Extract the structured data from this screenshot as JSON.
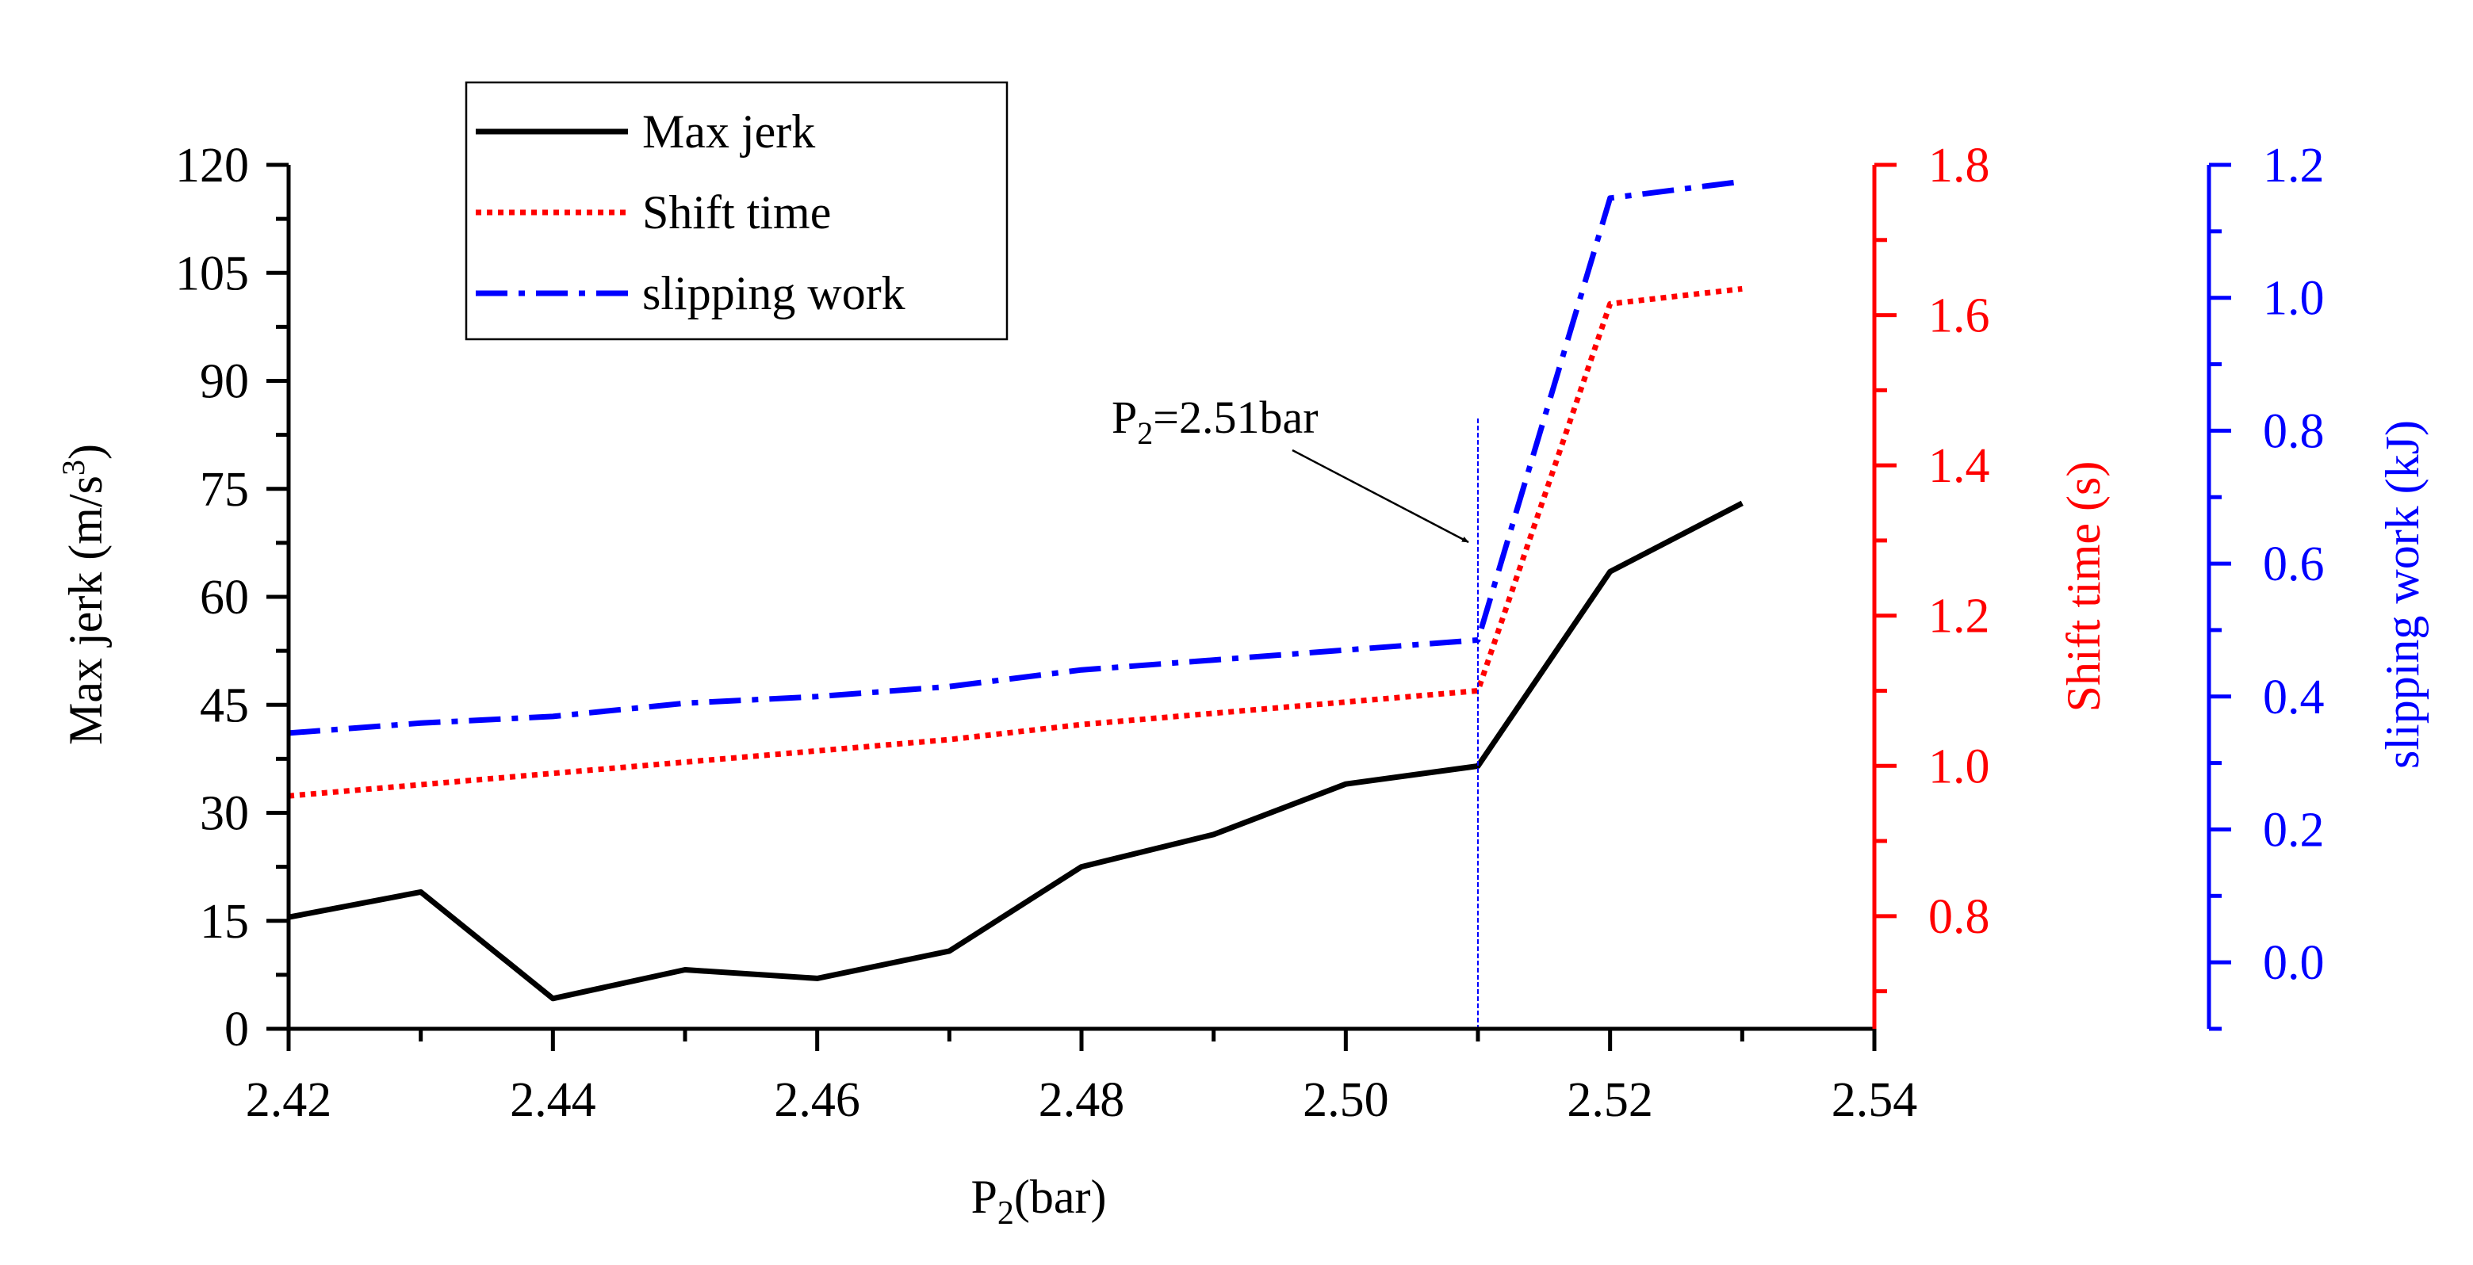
{
  "colors": {
    "jerk": "#000000",
    "shift": "#ff0000",
    "slip": "#0000ff",
    "background": "#ffffff"
  },
  "chart_data": {
    "type": "line",
    "x": [
      2.42,
      2.43,
      2.44,
      2.45,
      2.46,
      2.47,
      2.48,
      2.49,
      2.5,
      2.51,
      2.52,
      2.53
    ],
    "xlim": [
      2.42,
      2.54
    ],
    "x_ticks": [
      "2.42",
      "2.44",
      "2.46",
      "2.48",
      "2.50",
      "2.52",
      "2.54"
    ],
    "xlabel": {
      "main": "P",
      "sub": "2",
      "rest": "(bar)"
    },
    "y_axes": {
      "left": {
        "label": {
          "main": "Max jerk (m/s",
          "sup": "3",
          "rest": ")"
        },
        "ylim": [
          0,
          120
        ],
        "ticks": [
          "0",
          "15",
          "30",
          "45",
          "60",
          "75",
          "90",
          "105",
          "120"
        ]
      },
      "right1": {
        "label": "Shift time (s)",
        "ylim": [
          0.65,
          1.8
        ],
        "ticks": [
          "0.8",
          "1.0",
          "1.2",
          "1.4",
          "1.6",
          "1.8"
        ]
      },
      "right2": {
        "label": "slipping work (kJ)",
        "ylim": [
          -0.1,
          1.2
        ],
        "ticks": [
          "0.0",
          "0.2",
          "0.4",
          "0.6",
          "0.8",
          "1.0",
          "1.2"
        ]
      }
    },
    "series": [
      {
        "name": "Max jerk",
        "axis": "left",
        "style": "solid",
        "values": [
          15.5,
          19,
          4.2,
          8.2,
          7,
          10.8,
          22.5,
          27,
          34,
          36.5,
          63.5,
          73
        ]
      },
      {
        "name": "Shift time",
        "axis": "right1",
        "style": "dotted",
        "values": [
          0.96,
          0.975,
          0.99,
          1.005,
          1.02,
          1.035,
          1.055,
          1.07,
          1.085,
          1.1,
          1.615,
          1.635
        ]
      },
      {
        "name": "slipping work",
        "axis": "right2",
        "style": "dashdot",
        "values": [
          0.345,
          0.36,
          0.37,
          0.39,
          0.4,
          0.415,
          0.44,
          0.455,
          0.47,
          0.485,
          1.15,
          1.175
        ]
      }
    ],
    "annotation": {
      "text_main": "P",
      "text_sub": "2",
      "text_rest": "=2.51bar",
      "x": 2.51
    },
    "legend": {
      "position": "top-left"
    }
  }
}
